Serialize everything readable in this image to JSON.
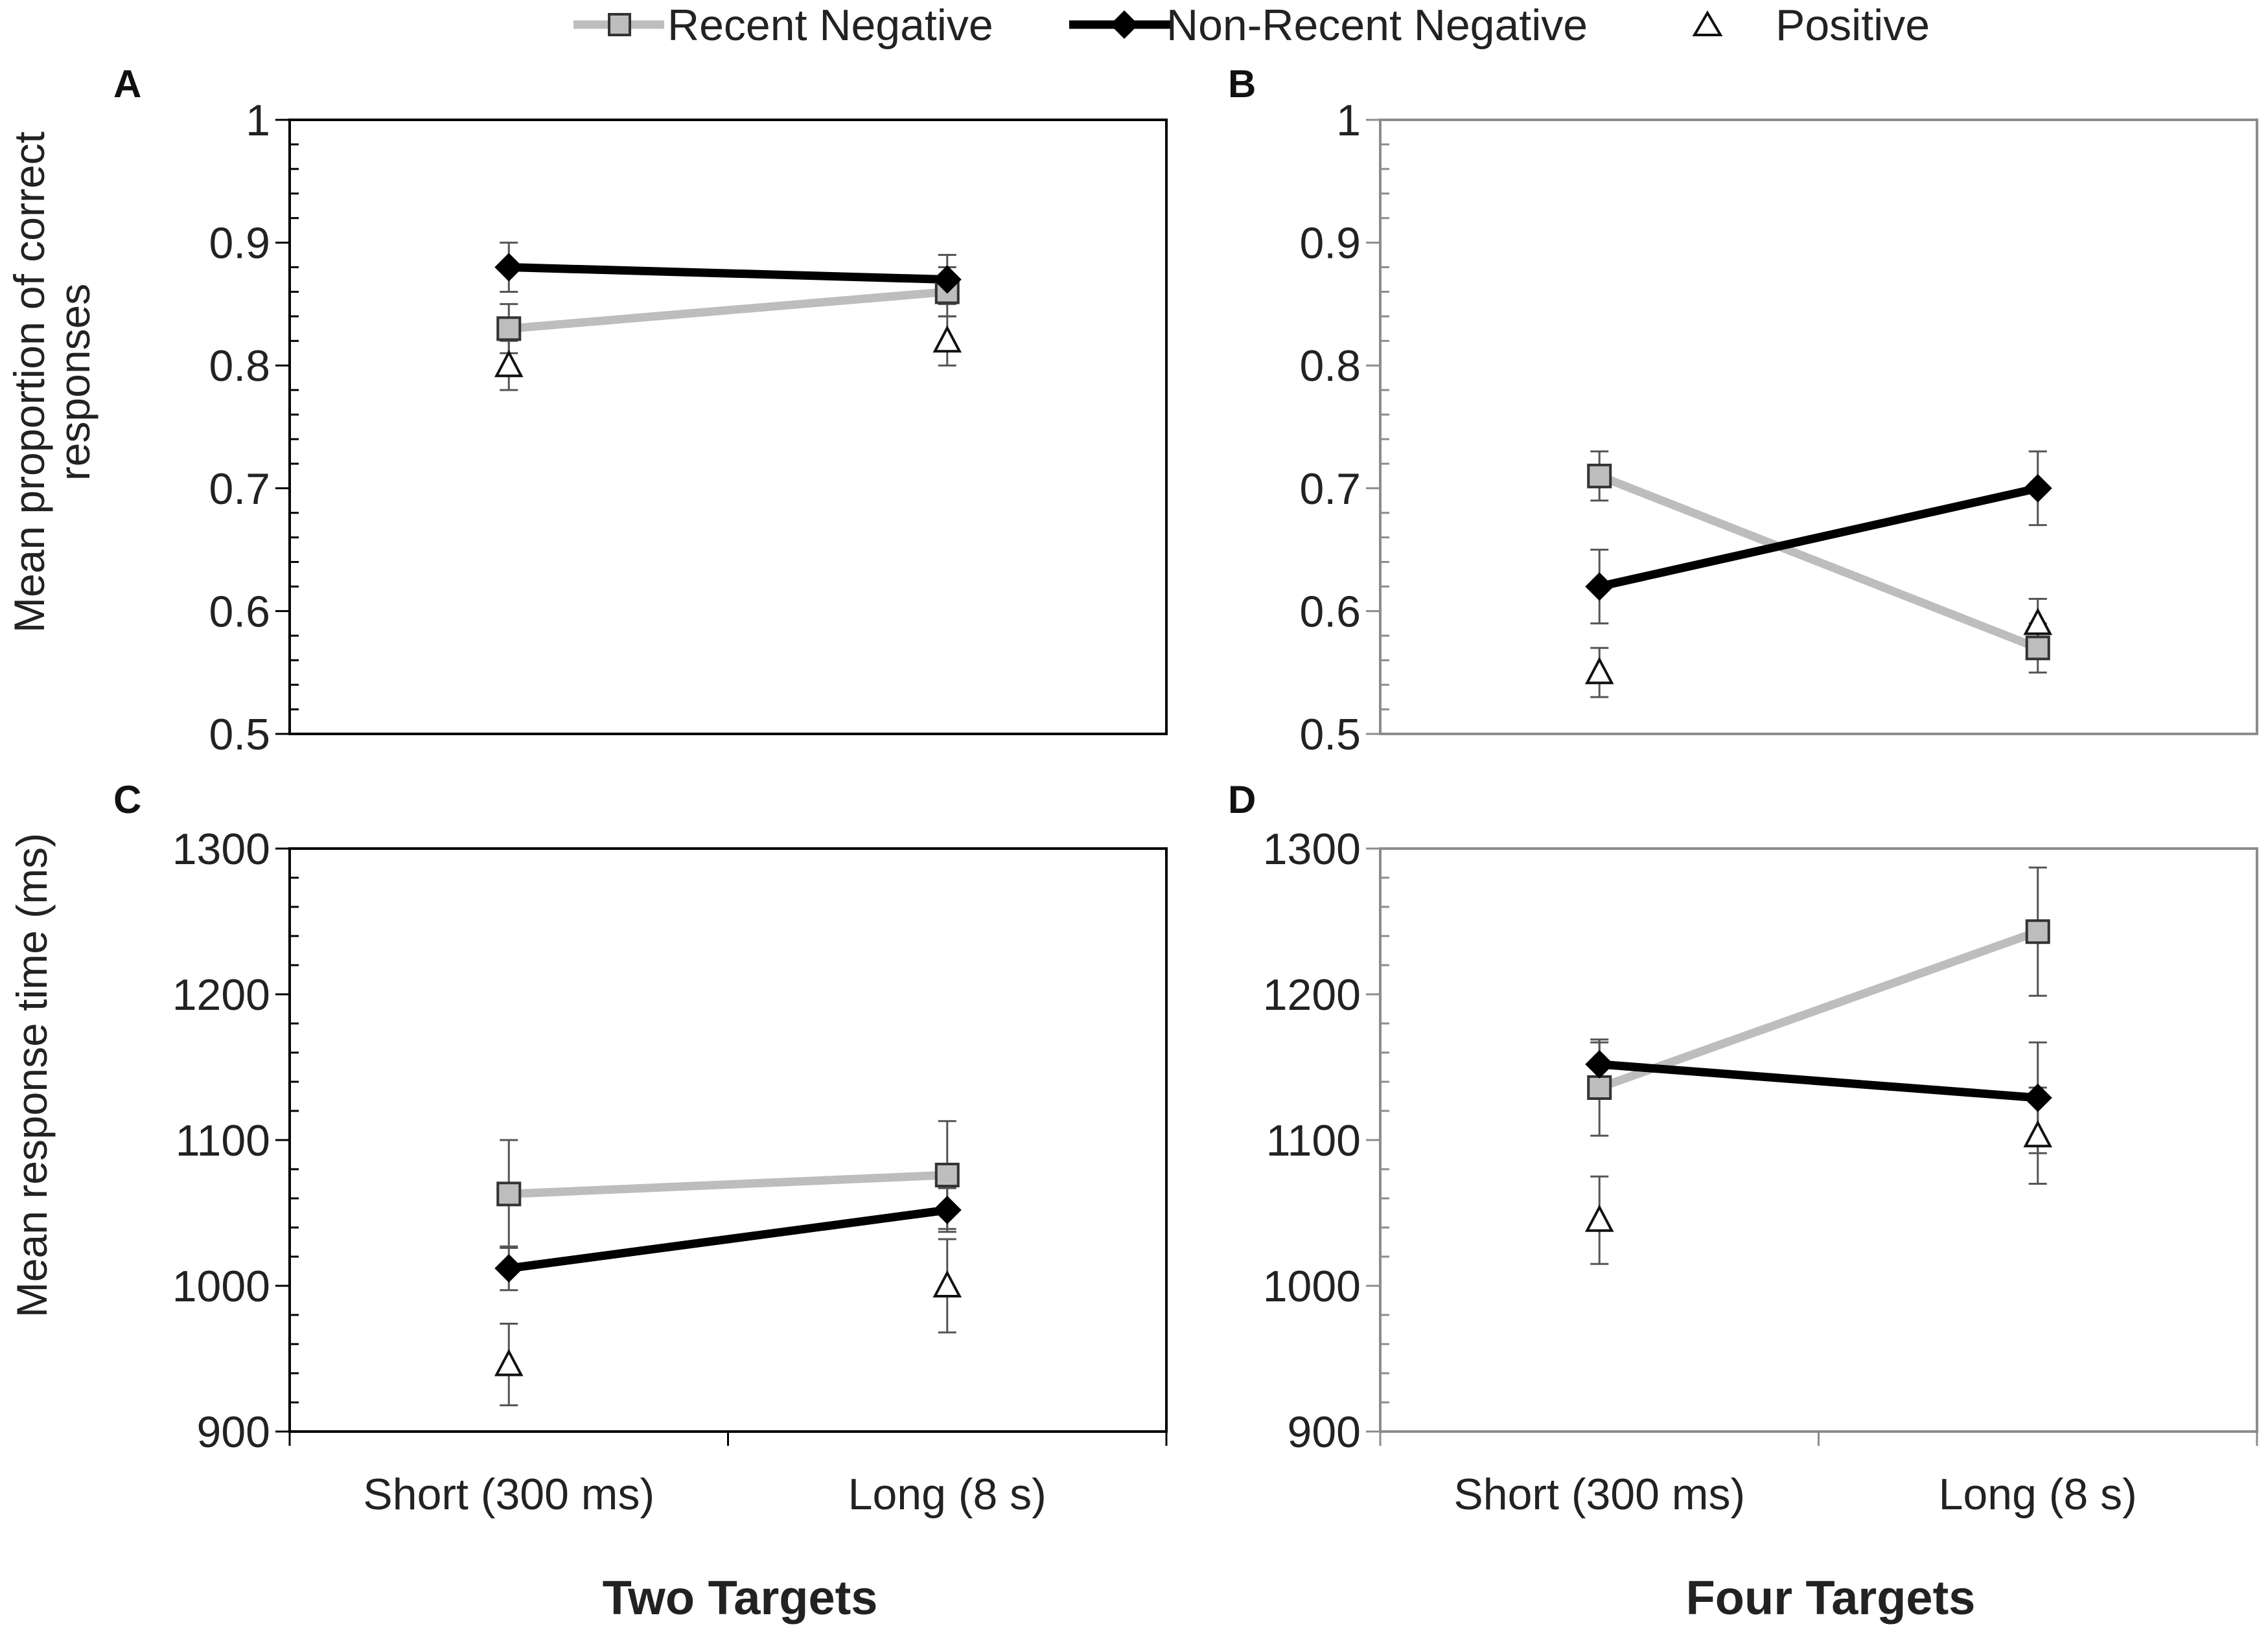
{
  "legend": {
    "recent": "Recent Negative",
    "nonrecent": "Non-Recent Negative",
    "positive": "Positive"
  },
  "colors": {
    "recent": "#bdbdbd",
    "nonrecent": "#000000",
    "positive": "#ffffff",
    "frame_dark": "#000000",
    "frame_grey": "#8c8c8c",
    "group_two": "#000000",
    "group_four": "#8c8c8c"
  },
  "groups": {
    "two": "Two Targets",
    "four": "Four Targets"
  },
  "xlabels": {
    "short": "Short (300 ms)",
    "long": "Long (8 s)"
  },
  "ylabels": {
    "accuracy_line1": "Mean proportion of correct",
    "accuracy_line2": "responses",
    "rt": "Mean response time (ms)"
  },
  "chart_data": [
    {
      "panel": "A",
      "type": "line",
      "group": "Two Targets",
      "categories": [
        "Short (300 ms)",
        "Long (8 s)"
      ],
      "ylim": [
        0.5,
        1.0
      ],
      "yticks": [
        "0.5",
        "0.6",
        "0.7",
        "0.8",
        "0.9",
        "1"
      ],
      "series": [
        {
          "name": "Recent Negative",
          "values": [
            0.83,
            0.86
          ],
          "errors": [
            0.02,
            0.02
          ]
        },
        {
          "name": "Non-Recent Negative",
          "values": [
            0.88,
            0.87
          ],
          "errors": [
            0.02,
            0.02
          ]
        },
        {
          "name": "Positive",
          "values": [
            0.8,
            0.82
          ],
          "errors": [
            0.02,
            0.02
          ]
        }
      ]
    },
    {
      "panel": "B",
      "type": "line",
      "group": "Four Targets",
      "categories": [
        "Short (300 ms)",
        "Long (8 s)"
      ],
      "ylim": [
        0.5,
        1.0
      ],
      "yticks": [
        "0.5",
        "0.6",
        "0.7",
        "0.8",
        "0.9",
        "1"
      ],
      "series": [
        {
          "name": "Recent Negative",
          "values": [
            0.71,
            0.57
          ],
          "errors": [
            0.02,
            0.02
          ]
        },
        {
          "name": "Non-Recent Negative",
          "values": [
            0.62,
            0.7
          ],
          "errors": [
            0.03,
            0.03
          ]
        },
        {
          "name": "Positive",
          "values": [
            0.55,
            0.59
          ],
          "errors": [
            0.02,
            0.02
          ]
        }
      ]
    },
    {
      "panel": "C",
      "type": "line",
      "group": "Two Targets",
      "categories": [
        "Short (300 ms)",
        "Long (8 s)"
      ],
      "ylim": [
        900,
        1300
      ],
      "yticks": [
        "900",
        "1000",
        "1100",
        "1200",
        "1300"
      ],
      "series": [
        {
          "name": "Recent Negative",
          "values": [
            1063,
            1076
          ],
          "errors": [
            37,
            37
          ]
        },
        {
          "name": "Non-Recent Negative",
          "values": [
            1012,
            1052
          ],
          "errors": [
            15,
            15
          ]
        },
        {
          "name": "Positive",
          "values": [
            946,
            1000
          ],
          "errors": [
            28,
            32
          ]
        }
      ]
    },
    {
      "panel": "D",
      "type": "line",
      "group": "Four Targets",
      "categories": [
        "Short (300 ms)",
        "Long (8 s)"
      ],
      "ylim": [
        900,
        1300
      ],
      "yticks": [
        "900",
        "1000",
        "1100",
        "1200",
        "1300"
      ],
      "series": [
        {
          "name": "Recent Negative",
          "values": [
            1136,
            1243
          ],
          "errors": [
            33,
            44
          ]
        },
        {
          "name": "Non-Recent Negative",
          "values": [
            1152,
            1129
          ],
          "errors": [
            15,
            38
          ]
        },
        {
          "name": "Positive",
          "values": [
            1045,
            1103
          ],
          "errors": [
            30,
            33
          ]
        }
      ]
    }
  ]
}
